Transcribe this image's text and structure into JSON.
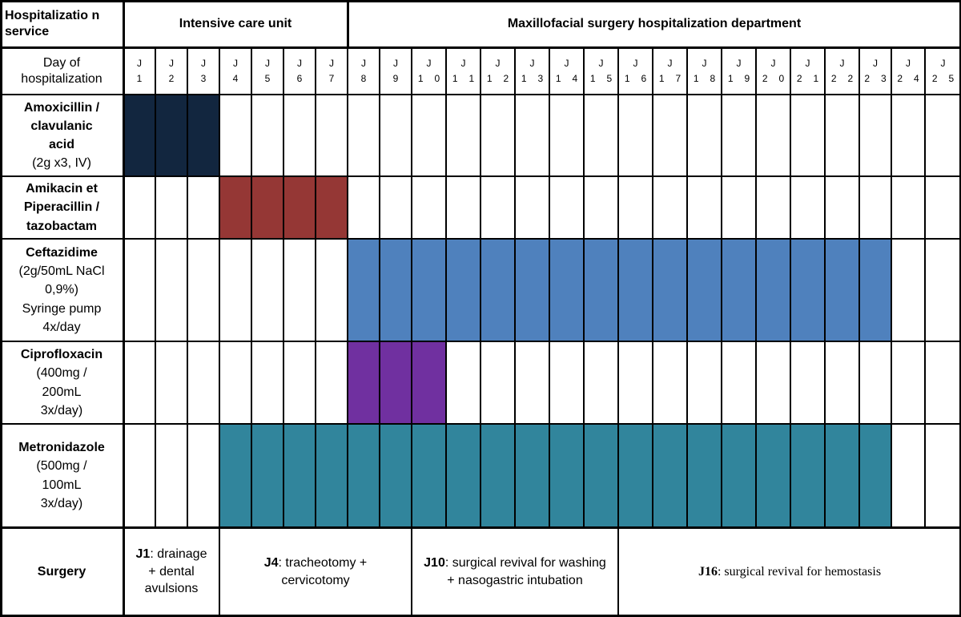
{
  "header": {
    "service_label": "Hospitalizatio n service",
    "icu_label": "Intensive care unit",
    "surgery_dept_label": "Maxillofacial surgery hospitalization department",
    "day_label": "Day of hospitalization"
  },
  "days": [
    {
      "prefix": "J",
      "digits": [
        "1"
      ]
    },
    {
      "prefix": "J",
      "digits": [
        "2"
      ]
    },
    {
      "prefix": "J",
      "digits": [
        "3"
      ]
    },
    {
      "prefix": "J",
      "digits": [
        "4"
      ]
    },
    {
      "prefix": "J",
      "digits": [
        "5"
      ]
    },
    {
      "prefix": "J",
      "digits": [
        "6"
      ]
    },
    {
      "prefix": "J",
      "digits": [
        "7"
      ]
    },
    {
      "prefix": "J",
      "digits": [
        "8"
      ]
    },
    {
      "prefix": "J",
      "digits": [
        "9"
      ]
    },
    {
      "prefix": "J",
      "digits": [
        "1",
        "0"
      ]
    },
    {
      "prefix": "J",
      "digits": [
        "1",
        "1"
      ]
    },
    {
      "prefix": "J",
      "digits": [
        "1",
        "2"
      ]
    },
    {
      "prefix": "J",
      "digits": [
        "1",
        "3"
      ]
    },
    {
      "prefix": "J",
      "digits": [
        "1",
        "4"
      ]
    },
    {
      "prefix": "J",
      "digits": [
        "1",
        "5"
      ]
    },
    {
      "prefix": "J",
      "digits": [
        "1",
        "6"
      ]
    },
    {
      "prefix": "J",
      "digits": [
        "1",
        "7"
      ]
    },
    {
      "prefix": "J",
      "digits": [
        "1",
        "8"
      ]
    },
    {
      "prefix": "J",
      "digits": [
        "1",
        "9"
      ]
    },
    {
      "prefix": "J",
      "digits": [
        "2",
        "0"
      ]
    },
    {
      "prefix": "J",
      "digits": [
        "2",
        "1"
      ]
    },
    {
      "prefix": "J",
      "digits": [
        "2",
        "2"
      ]
    },
    {
      "prefix": "J",
      "digits": [
        "2",
        "3"
      ]
    },
    {
      "prefix": "J",
      "digits": [
        "2",
        "4"
      ]
    },
    {
      "prefix": "J",
      "digits": [
        "2",
        "5"
      ]
    }
  ],
  "treatments": [
    {
      "name_lines": [
        "Amoxicillin /",
        "clavulanic",
        "acid"
      ],
      "detail_lines": [
        "(2g x3, IV)"
      ],
      "start_day": 1,
      "end_day": 3,
      "color": "#12263f"
    },
    {
      "name_lines": [
        "Amikacin et",
        "Piperacillin /",
        "tazobactam"
      ],
      "detail_lines": [],
      "start_day": 4,
      "end_day": 7,
      "color": "#953735"
    },
    {
      "name_lines": [
        "Ceftazidime"
      ],
      "detail_lines": [
        "(2g/50mL NaCl",
        "0,9%)",
        "Syringe pump",
        "4x/day"
      ],
      "start_day": 8,
      "end_day": 23,
      "color": "#4f81bd"
    },
    {
      "name_lines": [
        "Ciprofloxacin"
      ],
      "detail_lines": [
        "(400mg /",
        "200mL",
        "3x/day)"
      ],
      "start_day": 8,
      "end_day": 10,
      "color": "#7030a0"
    },
    {
      "name_lines": [
        "Metronidazole"
      ],
      "detail_lines": [
        "(500mg /",
        "100mL",
        "3x/day)"
      ],
      "start_day": 4,
      "end_day": 23,
      "color": "#31859c"
    }
  ],
  "surgery": {
    "label": "Surgery",
    "events": [
      {
        "day_code": "J1",
        "text": ": drainage + dental avulsions",
        "start_day": 1,
        "end_day": 3
      },
      {
        "day_code": "J4",
        "text": ": tracheotomy + cervicotomy",
        "start_day": 4,
        "end_day": 9
      },
      {
        "day_code": "J10",
        "text": ": surgical revival for washing + nasogastric intubation",
        "start_day": 10,
        "end_day": 15
      },
      {
        "day_code": "J16",
        "text": ": surgical revival for hemostasis",
        "start_day": 16,
        "end_day": 25
      }
    ]
  }
}
